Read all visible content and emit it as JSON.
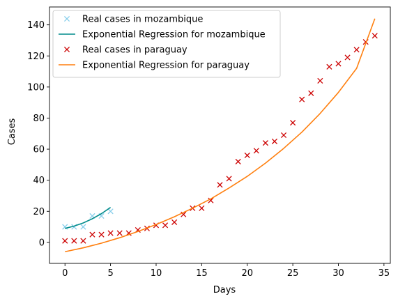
{
  "chart_data": {
    "type": "scatter",
    "title": "",
    "xlabel": "Days",
    "ylabel": "Cases",
    "xlim": [
      -1.7,
      35.7
    ],
    "ylim": [
      -13.5,
      151.5
    ],
    "xticks": [
      0,
      5,
      10,
      15,
      20,
      25,
      30,
      35
    ],
    "yticks": [
      0,
      20,
      40,
      60,
      80,
      100,
      120,
      140
    ],
    "grid": false,
    "legend_position": "top-left",
    "series": [
      {
        "name": "Real cases in mozambique",
        "kind": "markers",
        "marker": "x",
        "color": "#87ceeb",
        "x": [
          0,
          1,
          2,
          3,
          4,
          5
        ],
        "y": [
          10,
          10,
          10,
          17,
          17,
          20
        ]
      },
      {
        "name": "Exponential Regression for mozambique",
        "kind": "line",
        "color": "#008b8b",
        "x": [
          0,
          1,
          2,
          3,
          4,
          5
        ],
        "y": [
          9,
          10.5,
          12.5,
          15.2,
          18.5,
          22.5
        ]
      },
      {
        "name": "Real cases in paraguay",
        "kind": "markers",
        "marker": "x",
        "color": "#cc0000",
        "x": [
          0,
          1,
          2,
          3,
          4,
          5,
          6,
          7,
          8,
          9,
          10,
          11,
          12,
          13,
          14,
          15,
          16,
          17,
          18,
          19,
          20,
          21,
          22,
          23,
          24,
          25,
          26,
          27,
          28,
          29,
          30,
          31,
          32,
          33,
          34
        ],
        "y": [
          1,
          1,
          1,
          5,
          5,
          6,
          6,
          6,
          8,
          9,
          11,
          11,
          13,
          18,
          22,
          22,
          27,
          37,
          41,
          52,
          56,
          59,
          64,
          65,
          69,
          77,
          92,
          96,
          104,
          113,
          115,
          119,
          124,
          129,
          133
        ]
      },
      {
        "name": "Exponential Regression for paraguay",
        "kind": "line",
        "color": "#ff7f0e",
        "x": [
          0,
          2,
          4,
          6,
          8,
          10,
          12,
          14,
          16,
          18,
          20,
          22,
          24,
          26,
          28,
          30,
          32,
          34
        ],
        "y": [
          -6,
          -3.5,
          -0.5,
          3,
          7,
          11.5,
          16.5,
          22,
          28,
          35,
          42.5,
          51,
          60.5,
          71,
          83,
          96.5,
          112,
          144
        ]
      }
    ]
  }
}
